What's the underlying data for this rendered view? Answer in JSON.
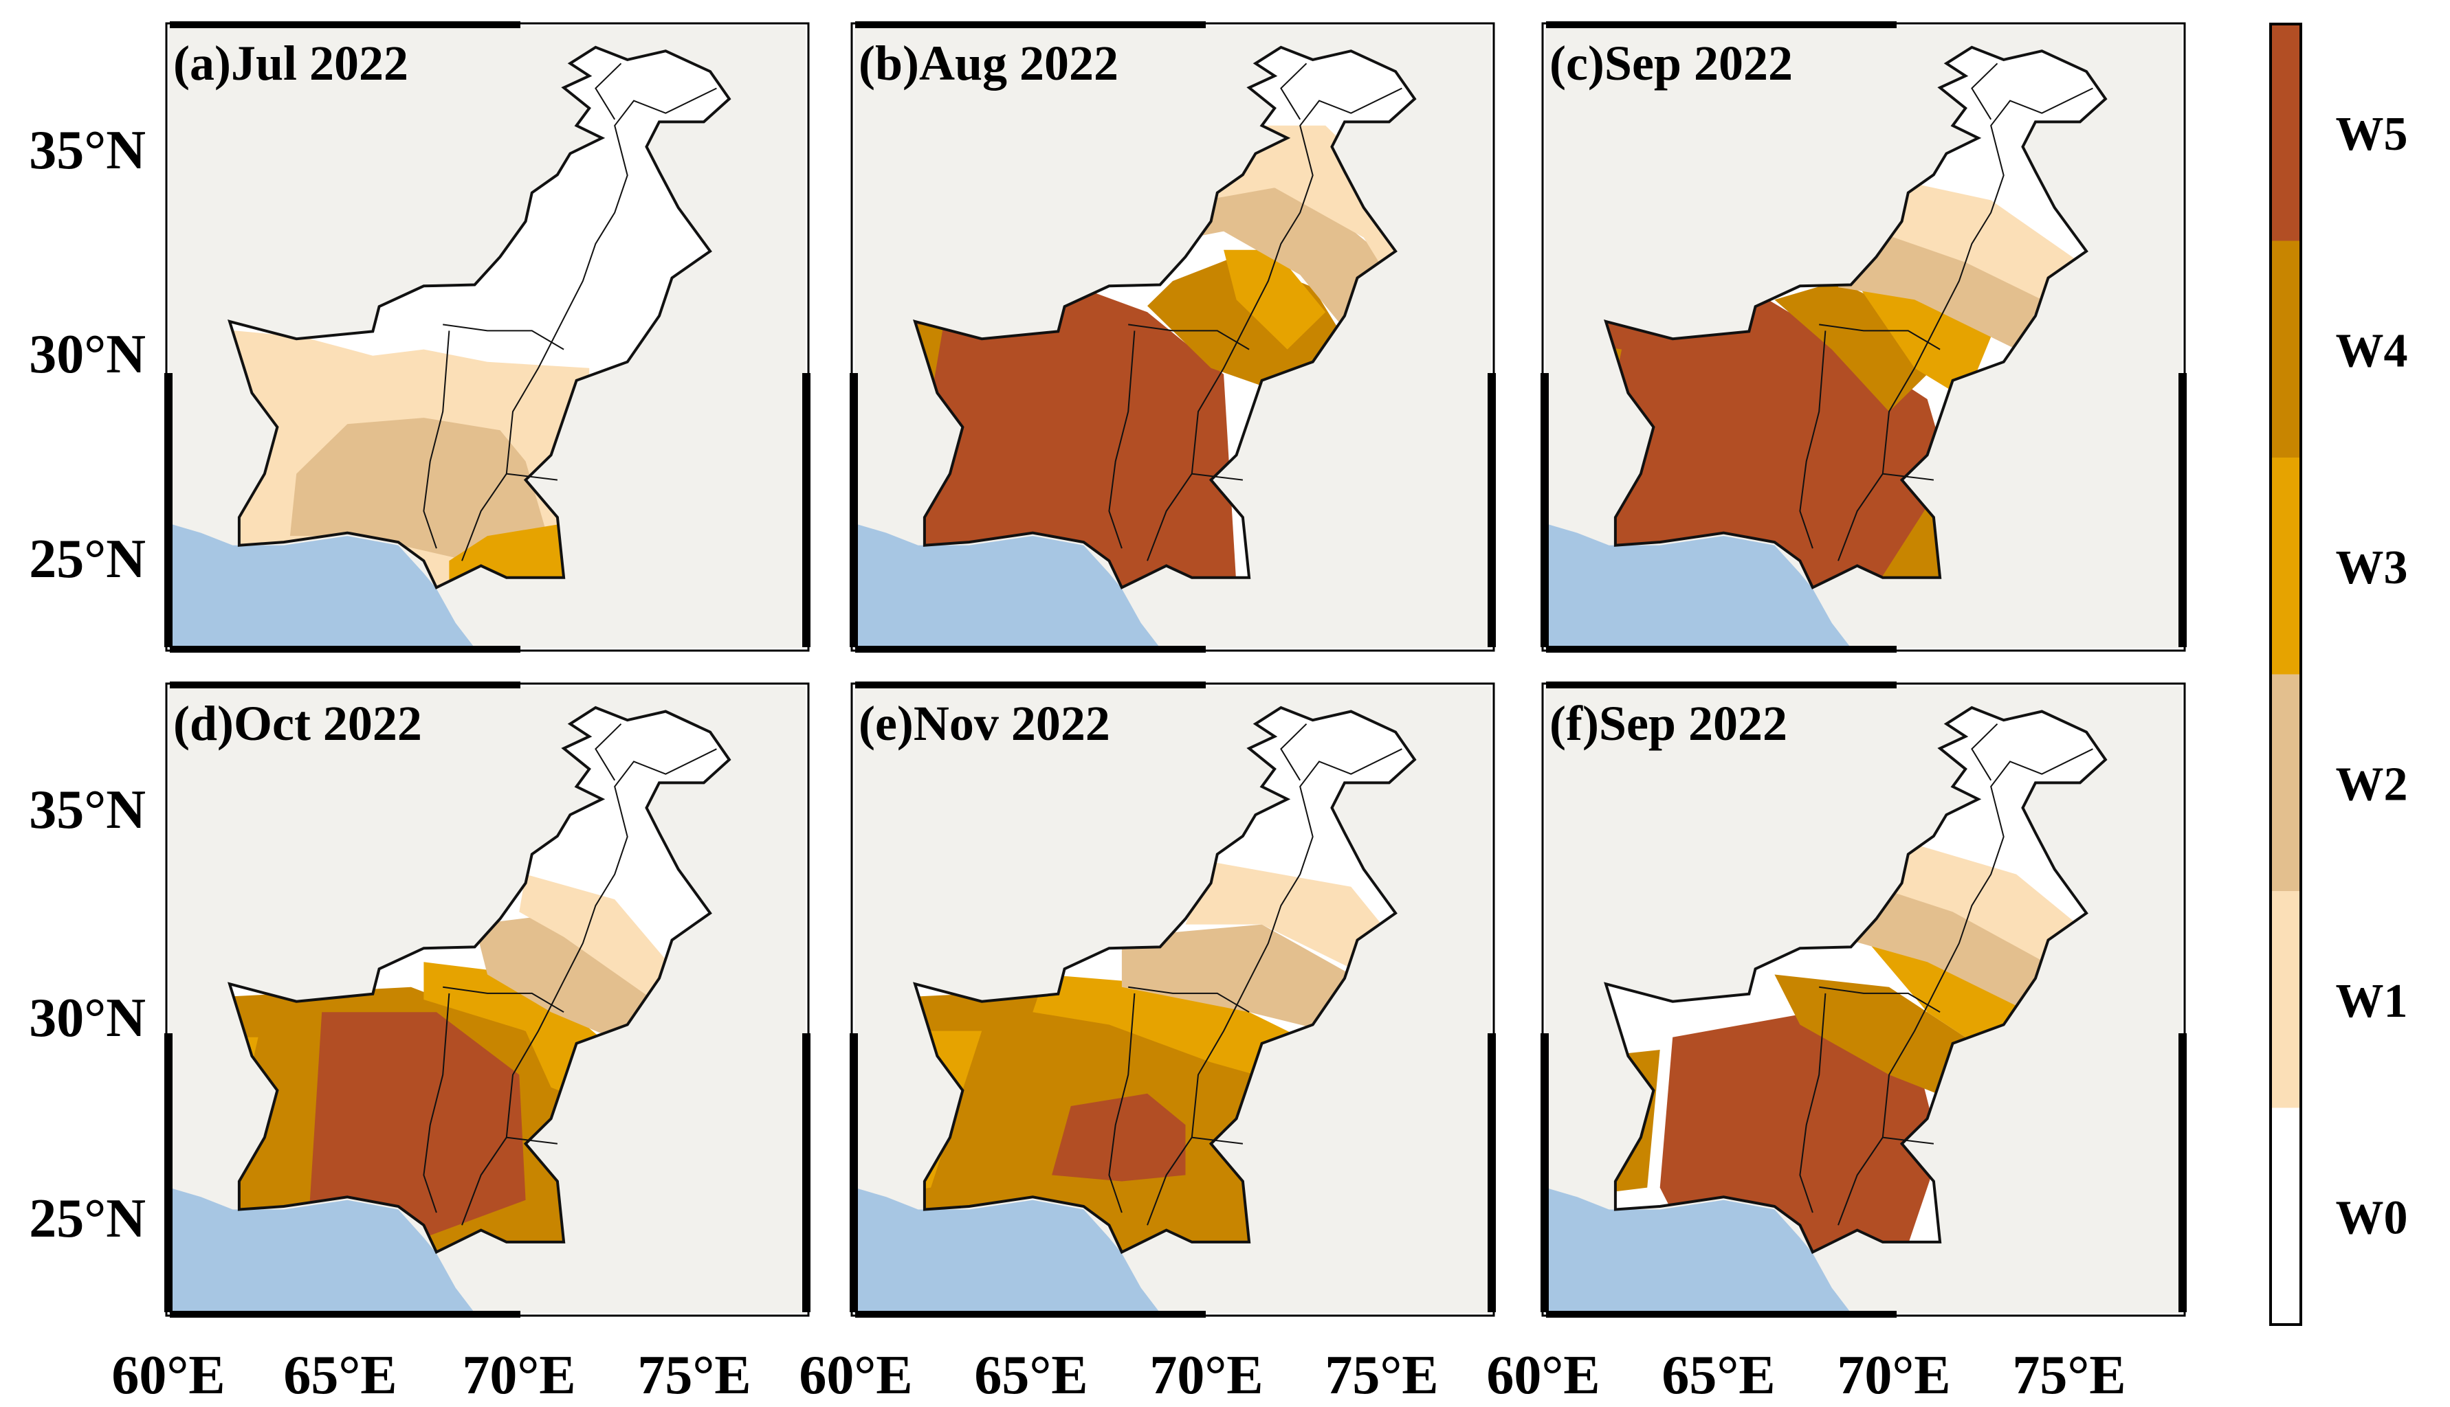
{
  "map_data": {
    "region": "Pakistan",
    "lon_range_deg": [
      60,
      78
    ],
    "lat_range_deg": [
      23,
      38
    ],
    "category_colors": {
      "W0": "#ffffff",
      "W1": "#fbdfb7",
      "W2": "#e3bf8e",
      "W3": "#e6a300",
      "W4": "#c88500",
      "W5": "#b24e24"
    },
    "background_colors": {
      "land_outside": "#f2f1ed",
      "sea": "#a7c6e3"
    },
    "panels": [
      {
        "label": "(a)Jul 2022",
        "dominant_categories": [
          "W0",
          "W1",
          "W2",
          "W3"
        ]
      },
      {
        "label": "(b)Aug 2022",
        "dominant_categories": [
          "W1",
          "W2",
          "W3",
          "W4",
          "W5"
        ]
      },
      {
        "label": "(c)Sep 2022",
        "dominant_categories": [
          "W0",
          "W1",
          "W2",
          "W3",
          "W4",
          "W5"
        ]
      },
      {
        "label": "(d)Oct 2022",
        "dominant_categories": [
          "W0",
          "W1",
          "W2",
          "W3",
          "W4",
          "W5"
        ]
      },
      {
        "label": "(e)Nov 2022",
        "dominant_categories": [
          "W0",
          "W1",
          "W2",
          "W3",
          "W4",
          "W5"
        ]
      },
      {
        "label": "(f)Sep 2022",
        "dominant_categories": [
          "W0",
          "W1",
          "W2",
          "W3",
          "W4",
          "W5"
        ]
      }
    ],
    "lat_ticks": [
      "35°N",
      "30°N",
      "25°N"
    ],
    "lon_ticks": [
      "60°E",
      "65°E",
      "70°E",
      "75°E"
    ]
  },
  "legend": {
    "items": [
      {
        "label": "W5",
        "color": "#b24e24"
      },
      {
        "label": "W4",
        "color": "#c88500"
      },
      {
        "label": "W3",
        "color": "#e6a300"
      },
      {
        "label": "W2",
        "color": "#e3bf8e"
      },
      {
        "label": "W1",
        "color": "#fbdfb7"
      },
      {
        "label": "W0",
        "color": "#ffffff"
      }
    ]
  }
}
